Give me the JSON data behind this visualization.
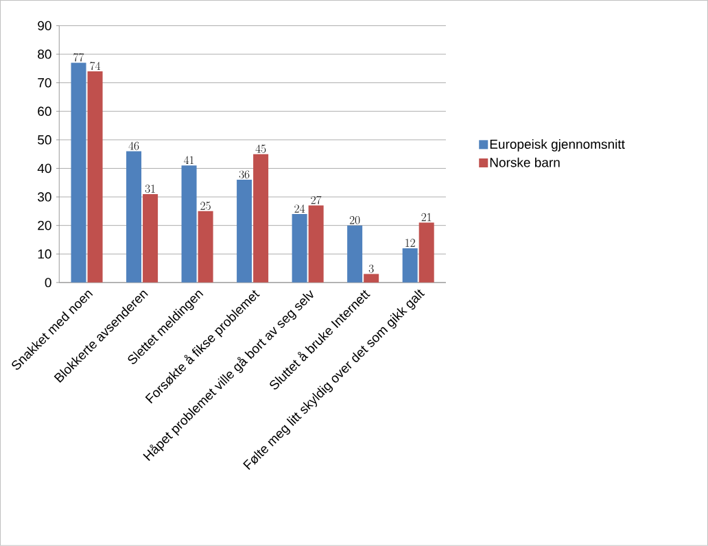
{
  "chart_data": {
    "type": "bar",
    "categories": [
      "Snakket med noen",
      "Blokkerte avsenderen",
      "Slettet meldingen",
      "Forsøkte å fikse problemet",
      "Håpet problemet ville gå bort av seg selv",
      "Sluttet å bruke Internett",
      "Følte meg litt skyldig over det som gikk galt"
    ],
    "series": [
      {
        "name": "Europeisk gjennomsnitt",
        "color": "#4f81bd",
        "values": [
          77,
          46,
          41,
          36,
          24,
          20,
          12
        ]
      },
      {
        "name": "Norske barn",
        "color": "#c0504d",
        "values": [
          74,
          31,
          25,
          45,
          27,
          3,
          21
        ]
      }
    ],
    "ylim": [
      0,
      90
    ],
    "yticks": [
      0,
      10,
      20,
      30,
      40,
      50,
      60,
      70,
      80,
      90
    ],
    "grid": "y",
    "legend": "right",
    "data_labels": true
  }
}
